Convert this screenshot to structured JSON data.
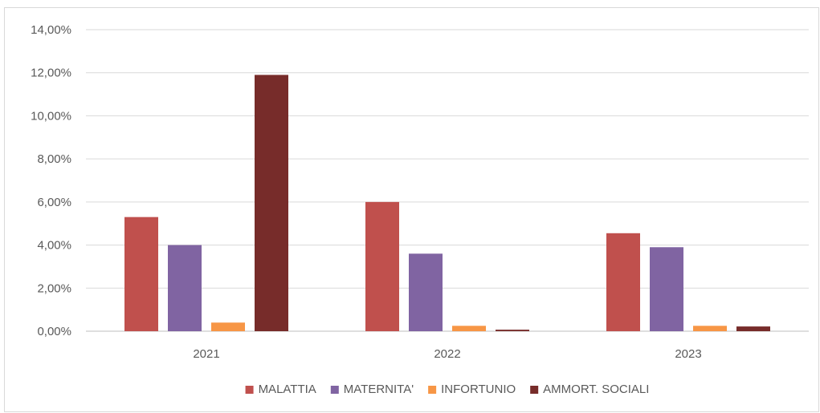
{
  "chart_data": {
    "type": "bar",
    "categories": [
      "2021",
      "2022",
      "2023"
    ],
    "series": [
      {
        "name": "MALATTIA",
        "color": "#C0504D",
        "values": [
          5.3,
          6.0,
          4.55
        ]
      },
      {
        "name": "MATERNITA'",
        "color": "#8064A2",
        "values": [
          4.0,
          3.6,
          3.9
        ]
      },
      {
        "name": "INFORTUNIO",
        "color": "#F79646",
        "values": [
          0.4,
          0.25,
          0.25
        ]
      },
      {
        "name": "AMMORT. SOCIALI",
        "color": "#772C2A",
        "values": [
          11.9,
          0.07,
          0.22
        ]
      }
    ],
    "ylim": [
      0,
      14
    ],
    "yticks": [
      {
        "value": 0,
        "label": "0,00%"
      },
      {
        "value": 2,
        "label": "2,00%"
      },
      {
        "value": 4,
        "label": "4,00%"
      },
      {
        "value": 6,
        "label": "6,00%"
      },
      {
        "value": 8,
        "label": "8,00%"
      },
      {
        "value": 10,
        "label": "10,00%"
      },
      {
        "value": 12,
        "label": "12,00%"
      },
      {
        "value": 14,
        "label": "14,00%"
      }
    ],
    "grid": true,
    "legend": "bottom",
    "gridline_color": "#d9d9d9",
    "axis_line_color": "#bfbfbf"
  }
}
